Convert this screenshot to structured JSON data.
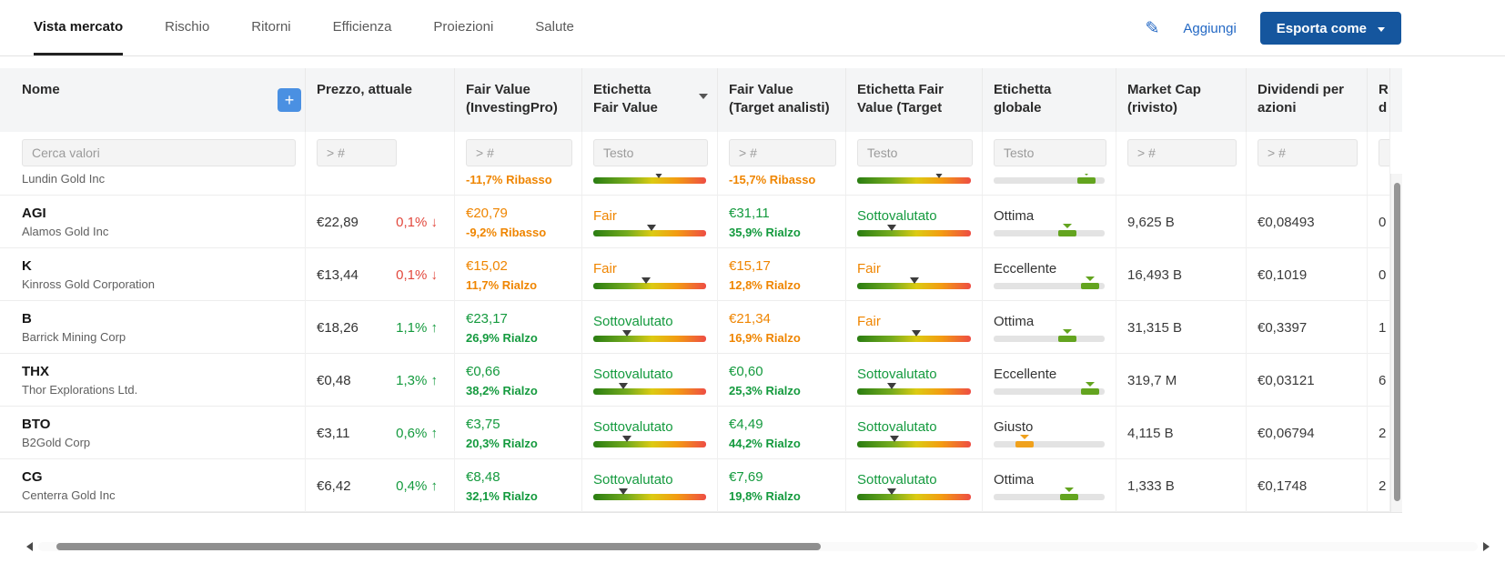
{
  "tabs": [
    {
      "label": "Vista mercato",
      "active": true
    },
    {
      "label": "Rischio",
      "active": false
    },
    {
      "label": "Ritorni",
      "active": false
    },
    {
      "label": "Efficienza",
      "active": false
    },
    {
      "label": "Proiezioni",
      "active": false
    },
    {
      "label": "Salute",
      "active": false
    }
  ],
  "toolbar": {
    "add_label": "Aggiungi",
    "export_label": "Esporta come"
  },
  "icons": {
    "pencil": "✎",
    "plus": "+"
  },
  "columns": {
    "nome": {
      "label": "Nome",
      "placeholder": "Cerca valori"
    },
    "prezzo": {
      "label": "Prezzo, attuale",
      "placeholder": "> #"
    },
    "fv_ip": {
      "label": "Fair Value\n(InvestingPro)",
      "placeholder": "> #"
    },
    "et_fv": {
      "label": "Etichetta\nFair Value",
      "placeholder": "Testo"
    },
    "fv_ta": {
      "label": "Fair Value\n(Target analisti)",
      "placeholder": "> #"
    },
    "et_fv_ta": {
      "label": "Etichetta Fair\nValue (Target",
      "placeholder": "Testo"
    },
    "et_glob": {
      "label": "Etichetta\nglobale",
      "placeholder": "Testo"
    },
    "mcap": {
      "label": "Market Cap\n(rivisto)",
      "placeholder": "> #"
    },
    "div": {
      "label": "Dividendi per\nazioni",
      "placeholder": "> #"
    },
    "partial": {
      "label": "R\nd",
      "placeholder": ""
    }
  },
  "colors": {
    "accent_blue": "#2368c4",
    "button_blue": "#15569e",
    "plus_blue": "#4a90e2",
    "orange": "#ef8500",
    "green": "#149a3e",
    "red": "#e2483d",
    "mark_green": "#63a41f",
    "mark_orange": "#f0a11c"
  },
  "rows": [
    {
      "clipped": true,
      "ticker": "",
      "company": "Lundin Gold Inc",
      "price": "",
      "change": "",
      "change_dir": "",
      "fv_ip": {
        "value": "",
        "pct": "-11,7% Ribasso",
        "tone": "orange"
      },
      "et_fv": {
        "text": "",
        "tone": "",
        "marker": 58
      },
      "fv_ta": {
        "value": "",
        "pct": "-15,7% Ribasso",
        "tone": "orange"
      },
      "et_fv_ta": {
        "text": "",
        "tone": "",
        "marker": 72
      },
      "et_glob": {
        "text": "",
        "tone": "green",
        "marker": 84
      },
      "mcap": "",
      "dividend": "",
      "partial": ""
    },
    {
      "clipped": false,
      "ticker": "AGI",
      "company": "Alamos Gold Inc",
      "price": "€22,89",
      "change": "0,1%",
      "change_dir": "down",
      "fv_ip": {
        "value": "€20,79",
        "pct": "-9,2% Ribasso",
        "tone": "orange"
      },
      "et_fv": {
        "text": "Fair",
        "tone": "orange",
        "marker": 52
      },
      "fv_ta": {
        "value": "€31,11",
        "pct": "35,9% Rialzo",
        "tone": "green"
      },
      "et_fv_ta": {
        "text": "Sottovalutato",
        "tone": "green",
        "marker": 30
      },
      "et_glob": {
        "text": "Ottima",
        "tone": "green",
        "marker": 66
      },
      "mcap": "9,625 B",
      "dividend": "€0,08493",
      "partial": "0"
    },
    {
      "clipped": false,
      "ticker": "K",
      "company": "Kinross Gold Corporation",
      "price": "€13,44",
      "change": "0,1%",
      "change_dir": "down",
      "fv_ip": {
        "value": "€15,02",
        "pct": "11,7% Rialzo",
        "tone": "orange"
      },
      "et_fv": {
        "text": "Fair",
        "tone": "orange",
        "marker": 47
      },
      "fv_ta": {
        "value": "€15,17",
        "pct": "12,8% Rialzo",
        "tone": "orange"
      },
      "et_fv_ta": {
        "text": "Fair",
        "tone": "orange",
        "marker": 50
      },
      "et_glob": {
        "text": "Eccellente",
        "tone": "green",
        "marker": 87
      },
      "mcap": "16,493 B",
      "dividend": "€0,1019",
      "partial": "0"
    },
    {
      "clipped": false,
      "ticker": "B",
      "company": "Barrick Mining Corp",
      "price": "€18,26",
      "change": "1,1%",
      "change_dir": "up",
      "fv_ip": {
        "value": "€23,17",
        "pct": "26,9% Rialzo",
        "tone": "green"
      },
      "et_fv": {
        "text": "Sottovalutato",
        "tone": "green",
        "marker": 30
      },
      "fv_ta": {
        "value": "€21,34",
        "pct": "16,9% Rialzo",
        "tone": "orange"
      },
      "et_fv_ta": {
        "text": "Fair",
        "tone": "orange",
        "marker": 52
      },
      "et_glob": {
        "text": "Ottima",
        "tone": "green",
        "marker": 66
      },
      "mcap": "31,315 B",
      "dividend": "€0,3397",
      "partial": "1"
    },
    {
      "clipped": false,
      "ticker": "THX",
      "company": "Thor Explorations Ltd.",
      "price": "€0,48",
      "change": "1,3%",
      "change_dir": "up",
      "fv_ip": {
        "value": "€0,66",
        "pct": "38,2% Rialzo",
        "tone": "green"
      },
      "et_fv": {
        "text": "Sottovalutato",
        "tone": "green",
        "marker": 27
      },
      "fv_ta": {
        "value": "€0,60",
        "pct": "25,3% Rialzo",
        "tone": "green"
      },
      "et_fv_ta": {
        "text": "Sottovalutato",
        "tone": "green",
        "marker": 30
      },
      "et_glob": {
        "text": "Eccellente",
        "tone": "green",
        "marker": 87
      },
      "mcap": "319,7 M",
      "dividend": "€0,03121",
      "partial": "6"
    },
    {
      "clipped": false,
      "ticker": "BTO",
      "company": "B2Gold Corp",
      "price": "€3,11",
      "change": "0,6%",
      "change_dir": "up",
      "fv_ip": {
        "value": "€3,75",
        "pct": "20,3% Rialzo",
        "tone": "green"
      },
      "et_fv": {
        "text": "Sottovalutato",
        "tone": "green",
        "marker": 30
      },
      "fv_ta": {
        "value": "€4,49",
        "pct": "44,2% Rialzo",
        "tone": "green"
      },
      "et_fv_ta": {
        "text": "Sottovalutato",
        "tone": "green",
        "marker": 33
      },
      "et_glob": {
        "text": "Giusto",
        "tone": "orange",
        "marker": 28
      },
      "mcap": "4,115 B",
      "dividend": "€0,06794",
      "partial": "2"
    },
    {
      "clipped": false,
      "ticker": "CG",
      "company": "Centerra Gold Inc",
      "price": "€6,42",
      "change": "0,4%",
      "change_dir": "up",
      "fv_ip": {
        "value": "€8,48",
        "pct": "32,1% Rialzo",
        "tone": "green"
      },
      "et_fv": {
        "text": "Sottovalutato",
        "tone": "green",
        "marker": 27
      },
      "fv_ta": {
        "value": "€7,69",
        "pct": "19,8% Rialzo",
        "tone": "green"
      },
      "et_fv_ta": {
        "text": "Sottovalutato",
        "tone": "green",
        "marker": 30
      },
      "et_glob": {
        "text": "Ottima",
        "tone": "green",
        "marker": 68
      },
      "mcap": "1,333 B",
      "dividend": "€0,1748",
      "partial": "2"
    }
  ]
}
